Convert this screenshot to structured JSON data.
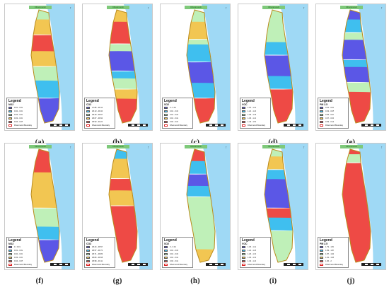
{
  "figure": {
    "zone_title": "Dhanmondi",
    "north_symbol": "↑",
    "legend_heading": "Legend",
    "boundary_label": "Dhanmondi Boundary",
    "colors": {
      "sea": "#9fd9f5",
      "land_outline": "#b98b1d",
      "c1": "#5b57e6",
      "c2": "#3fbfef",
      "c3": "#bff0b8",
      "c4": "#f2c652",
      "c5": "#ee4a45"
    },
    "panels": [
      {
        "label": "(a)",
        "pollutant": "NO2",
        "classes": [
          "0.01 - 0.02",
          "0.02 - 0.03",
          "0.03 - 0.03",
          "0.03 - 0.04",
          "0.04 - 0.05"
        ],
        "zones": [
          [
            "c3",
            0
          ],
          [
            "c4",
            10
          ],
          [
            "c5",
            22
          ],
          [
            "c4",
            38
          ],
          [
            "c3",
            50
          ],
          [
            "c2",
            64
          ],
          [
            "c1",
            78
          ]
        ]
      },
      {
        "label": "(b)",
        "pollutant": "CO2",
        "classes": [
          "47.86 - 48.13",
          "48.13 - 48.40",
          "48.40 - 48.67",
          "48.67 - 48.93",
          "48.93 - 49.20"
        ],
        "zones": [
          [
            "c4",
            0
          ],
          [
            "c5",
            12
          ],
          [
            "c3",
            30
          ],
          [
            "c1",
            38
          ],
          [
            "c2",
            54
          ],
          [
            "c3",
            62
          ],
          [
            "c4",
            70
          ],
          [
            "c5",
            80
          ]
        ]
      },
      {
        "label": "(c)",
        "pollutant": "SO2",
        "classes": [
          "0 - 0.01",
          "0.01 - 0.01",
          "0.01 - 0.01",
          "0.01 - 0.02",
          "0.02 - 0.03"
        ],
        "zones": [
          [
            "c3",
            0
          ],
          [
            "c4",
            12
          ],
          [
            "c3",
            26
          ],
          [
            "c2",
            32
          ],
          [
            "c1",
            46
          ],
          [
            "c2",
            66
          ],
          [
            "c5",
            78
          ]
        ]
      },
      {
        "label": "(d)",
        "pollutant": "VOC",
        "classes": [
          "1.15 - 1.22",
          "1.22 - 1.29",
          "1.29 - 1.36",
          "1.36 - 1.43",
          "1.43 - 1.50"
        ],
        "zones": [
          [
            "c3",
            0
          ],
          [
            "c2",
            30
          ],
          [
            "c1",
            40
          ],
          [
            "c2",
            60
          ],
          [
            "c5",
            70
          ]
        ]
      },
      {
        "label": "(e)",
        "pollutant": "PM 2.5",
        "classes": [
          "0.01 - 0.03",
          "0.03 - 0.05",
          "0.05 - 0.07",
          "0.07 - 0.09",
          "0.09 - 0.11"
        ],
        "zones": [
          [
            "c1",
            0
          ],
          [
            "c2",
            10
          ],
          [
            "c3",
            20
          ],
          [
            "c1",
            28
          ],
          [
            "c2",
            44
          ],
          [
            "c1",
            52
          ],
          [
            "c3",
            64
          ],
          [
            "c5",
            74
          ]
        ]
      },
      {
        "label": "(f)",
        "pollutant": "NO2",
        "classes": [
          "0 - 0.01",
          "0.01 - 0.02",
          "0.02 - 0.03",
          "0.03 - 0.04",
          "0.04 - 0.05"
        ],
        "zones": [
          [
            "c5",
            0
          ],
          [
            "c4",
            22
          ],
          [
            "c3",
            52
          ],
          [
            "c2",
            70
          ],
          [
            "c1",
            80
          ]
        ]
      },
      {
        "label": "(g)",
        "pollutant": "CO2",
        "classes": [
          "48.44 - 48.57",
          "48.57 - 48.71",
          "48.71 - 48.84",
          "48.84 - 48.98",
          "48.98 - 49.11"
        ],
        "zones": [
          [
            "c2",
            0
          ],
          [
            "c4",
            10
          ],
          [
            "c5",
            26
          ],
          [
            "c4",
            38
          ],
          [
            "c5",
            50
          ],
          [
            "c5",
            100
          ]
        ]
      },
      {
        "label": "(h)",
        "pollutant": "SO2",
        "classes": [
          "0 - 0.01",
          "0.01 - 0.01",
          "0.01 - 0.01",
          "0.01 - 0.02",
          "0.02 - 0.02"
        ],
        "zones": [
          [
            "c5",
            0
          ],
          [
            "c2",
            12
          ],
          [
            "c1",
            22
          ],
          [
            "c2",
            34
          ],
          [
            "c3",
            42
          ],
          [
            "c4",
            90
          ]
        ]
      },
      {
        "label": "(i)",
        "pollutant": "VOC",
        "classes": [
          "1.18 - 1.22",
          "1.22 - 1.26",
          "1.26 - 1.30",
          "1.30 - 1.34",
          "1.34 - 1.40"
        ],
        "zones": [
          [
            "c3",
            0
          ],
          [
            "c4",
            8
          ],
          [
            "c2",
            18
          ],
          [
            "c1",
            28
          ],
          [
            "c5",
            52
          ],
          [
            "c2",
            62
          ],
          [
            "c3",
            72
          ]
        ]
      },
      {
        "label": "(j)",
        "pollutant": "PM 2.5",
        "classes": [
          "1.79 - 1.83",
          "1.83 - 1.87",
          "1.87 - 1.91",
          "1.91 - 1.96",
          "1.96 - 2"
        ],
        "zones": [
          [
            "c5",
            0
          ],
          [
            "c3",
            6
          ],
          [
            "c5",
            12
          ],
          [
            "c5",
            100
          ]
        ]
      }
    ]
  }
}
